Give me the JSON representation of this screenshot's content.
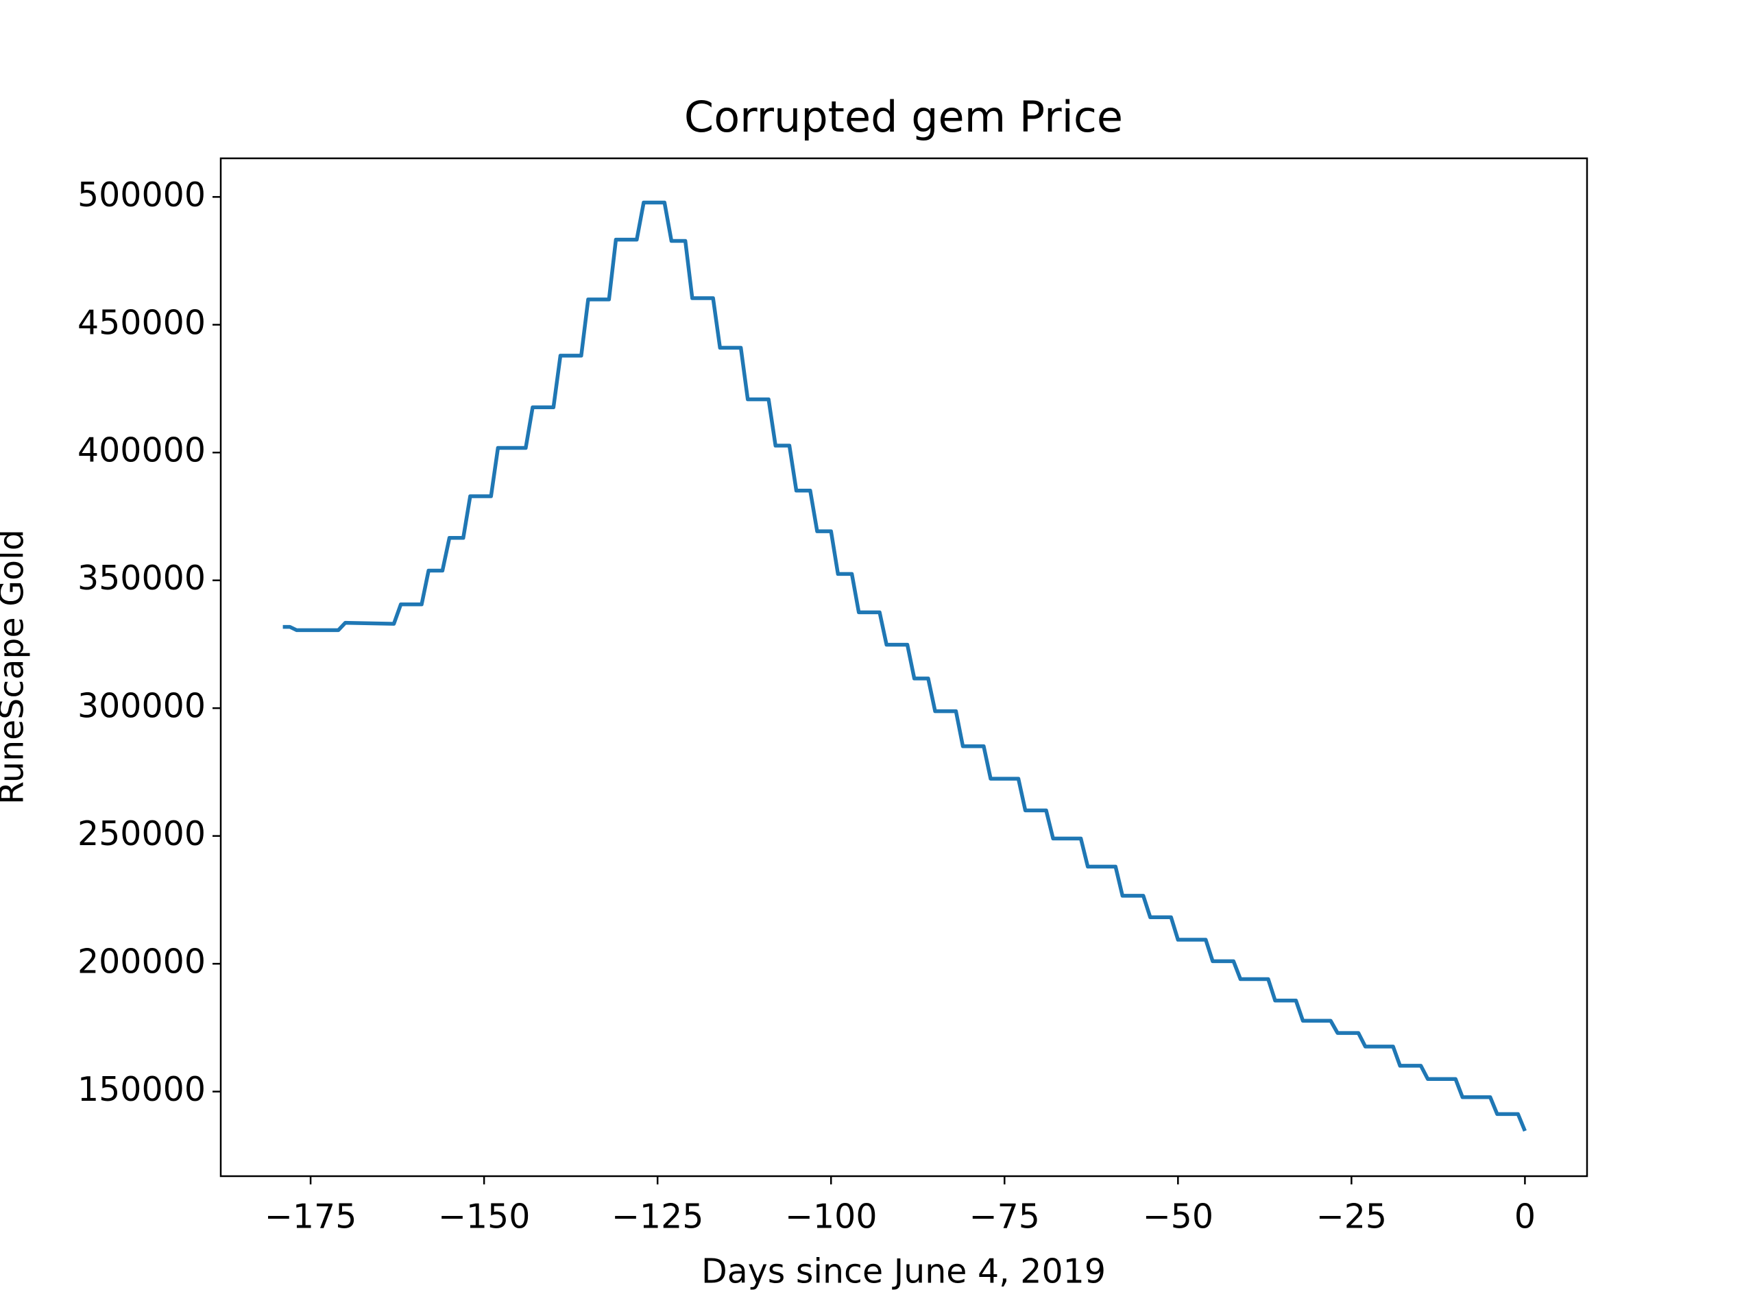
{
  "chart_data": {
    "type": "line",
    "title": "Corrupted gem Price",
    "xlabel": "Days since June 4, 2019",
    "ylabel": "RuneScape Gold",
    "color": "#1f77b4",
    "x": [
      -179,
      -178,
      -177,
      -171,
      -170,
      -163,
      -162,
      -159,
      -158,
      -156,
      -155,
      -153,
      -152,
      -149,
      -148,
      -144,
      -143,
      -140,
      -139,
      -136,
      -135,
      -132,
      -131,
      -128,
      -127,
      -124,
      -123,
      -121,
      -120,
      -117,
      -116,
      -113,
      -112,
      -109,
      -108,
      -106,
      -105,
      -103,
      -102,
      -100,
      -99,
      -97,
      -96,
      -93,
      -92,
      -89,
      -88,
      -86,
      -85,
      -82,
      -81,
      -78,
      -77,
      -73,
      -72,
      -69,
      -68,
      -64,
      -63,
      -59,
      -58,
      -55,
      -54,
      -51,
      -50,
      -46,
      -45,
      -42,
      -41,
      -37,
      -36,
      -33,
      -32,
      -28,
      -27,
      -24,
      -23,
      -19,
      -18,
      -15,
      -14,
      -10,
      -9,
      -5,
      -4,
      -1,
      0
    ],
    "values": [
      331800,
      331800,
      330500,
      330500,
      333400,
      333000,
      340600,
      340600,
      353800,
      353800,
      366600,
      366600,
      382900,
      382900,
      401800,
      401800,
      417700,
      417700,
      437900,
      437900,
      459900,
      459900,
      483300,
      483300,
      497800,
      497800,
      482800,
      482800,
      460400,
      460400,
      441000,
      441000,
      420800,
      420800,
      402700,
      402700,
      385100,
      385100,
      369200,
      369200,
      352500,
      352500,
      337500,
      337500,
      324800,
      324800,
      311600,
      311600,
      298800,
      298800,
      285100,
      285100,
      272400,
      272400,
      260000,
      260000,
      249000,
      249000,
      238000,
      238000,
      226600,
      226600,
      218200,
      218200,
      209400,
      209400,
      201000,
      201000,
      194000,
      194000,
      185600,
      185600,
      177700,
      177700,
      172900,
      172900,
      167600,
      167600,
      160100,
      160100,
      154900,
      154900,
      147800,
      147800,
      141200,
      141200,
      134600
    ],
    "xlim": [
      -187.95,
      8.95
    ],
    "xticks": [
      {
        "value": -175,
        "label": "−175"
      },
      {
        "value": -150,
        "label": "−150"
      },
      {
        "value": -125,
        "label": "−125"
      },
      {
        "value": -100,
        "label": "−100"
      },
      {
        "value": -75,
        "label": "−75"
      },
      {
        "value": -50,
        "label": "−50"
      },
      {
        "value": -25,
        "label": "−25"
      },
      0
    ],
    "ylim": [
      116900,
      515100
    ],
    "yticks": [
      150000,
      200000,
      250000,
      300000,
      350000,
      400000,
      450000,
      500000
    ],
    "grid": false
  }
}
